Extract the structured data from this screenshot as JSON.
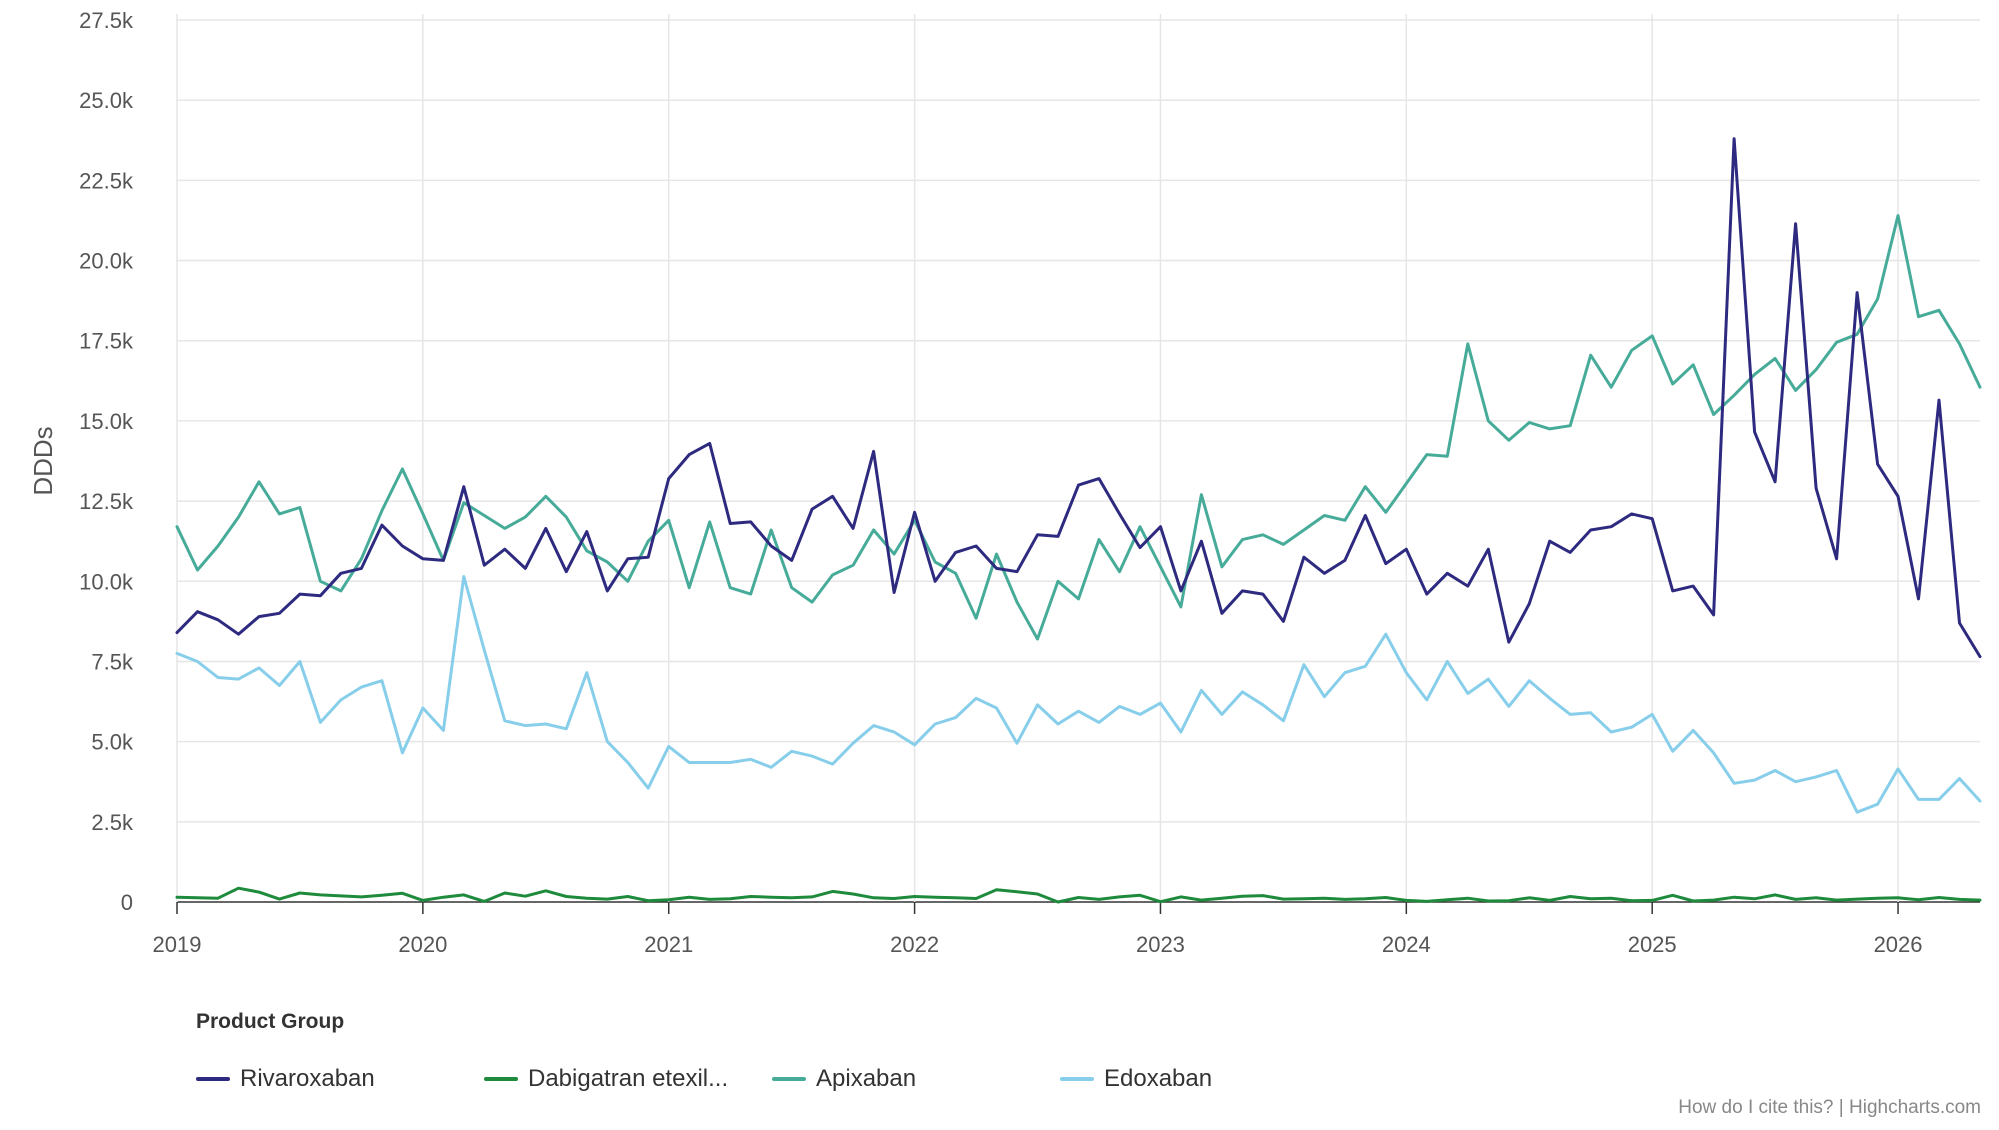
{
  "credits": "How do I cite this? | Highcharts.com",
  "legend_title": "Product Group",
  "chart_data": {
    "type": "line",
    "title": "",
    "ylabel": "DDDs",
    "xlabel": "",
    "ylim": [
      0,
      27500
    ],
    "y_ticks": [
      0,
      2500,
      5000,
      7500,
      10000,
      12500,
      15000,
      17500,
      20000,
      22500,
      25000,
      27500
    ],
    "y_tick_labels": [
      "0",
      "2.5k",
      "5.0k",
      "7.5k",
      "10.0k",
      "12.5k",
      "15.0k",
      "17.5k",
      "20.0k",
      "22.5k",
      "25.0k",
      "27.5k"
    ],
    "x_range": [
      "2019-01",
      "2026-05"
    ],
    "x_tick_labels": [
      "2019",
      "2020",
      "2021",
      "2022",
      "2023",
      "2024",
      "2025",
      "2026"
    ],
    "x_start": "2019-01",
    "x_interval": "month",
    "grid": true,
    "legend_position": "bottom-left",
    "series": [
      {
        "name": "Rivaroxaban",
        "color": "#2e2a80",
        "values": [
          8400,
          9050,
          8800,
          8350,
          8900,
          9000,
          9600,
          9550,
          10250,
          10400,
          11750,
          11100,
          10700,
          10650,
          12950,
          10500,
          11000,
          10400,
          11650,
          10300,
          11550,
          9700,
          10700,
          10750,
          13200,
          13950,
          14300,
          11800,
          11850,
          11100,
          10650,
          12250,
          12650,
          11650,
          14050,
          9650,
          12150,
          10000,
          10900,
          11100,
          10400,
          10300,
          11450,
          11400,
          13000,
          13200,
          12100,
          11050,
          11700,
          9700,
          11250,
          9000,
          9700,
          9600,
          8750,
          10750,
          10250,
          10650,
          12050,
          10550,
          11000,
          9600,
          10250,
          9850,
          11000,
          8100,
          9300,
          11250,
          10900,
          11600,
          11700,
          12100,
          11950,
          9700,
          9850,
          8950,
          23800,
          14650,
          13100,
          21150,
          12900,
          10700,
          19000,
          13650,
          12650,
          9450,
          15650,
          8700,
          7650
        ]
      },
      {
        "name": "Dabigatran etexil...",
        "color": "#1e8a3c",
        "values": [
          150,
          130,
          120,
          430,
          310,
          90,
          280,
          220,
          190,
          160,
          210,
          270,
          50,
          150,
          220,
          20,
          280,
          180,
          350,
          170,
          120,
          90,
          170,
          40,
          70,
          150,
          80,
          100,
          170,
          150,
          130,
          160,
          330,
          250,
          130,
          110,
          170,
          150,
          130,
          110,
          380,
          320,
          250,
          0,
          140,
          80,
          160,
          210,
          10,
          160,
          60,
          120,
          180,
          200,
          90,
          100,
          120,
          80,
          100,
          140,
          50,
          20,
          70,
          120,
          30,
          40,
          130,
          50,
          170,
          100,
          120,
          40,
          50,
          210,
          30,
          60,
          150,
          100,
          220,
          80,
          130,
          60,
          90,
          120,
          130,
          70,
          140,
          80,
          60
        ]
      },
      {
        "name": "Apixaban",
        "color": "#47ab99",
        "values": [
          11700,
          10350,
          11100,
          12000,
          13100,
          12100,
          12300,
          10000,
          9700,
          10700,
          12200,
          13500,
          12100,
          10650,
          12450,
          12050,
          11650,
          12000,
          12650,
          12000,
          10950,
          10600,
          10000,
          11250,
          11900,
          9800,
          11850,
          9800,
          9600,
          11600,
          9800,
          9350,
          10200,
          10500,
          11600,
          10850,
          11900,
          10600,
          10250,
          8850,
          10850,
          9350,
          8200,
          10000,
          9450,
          11300,
          10300,
          11700,
          10450,
          9200,
          12700,
          10450,
          11300,
          11450,
          11150,
          11600,
          12050,
          11900,
          12950,
          12150,
          13050,
          13950,
          13900,
          17400,
          15000,
          14400,
          14950,
          14750,
          14850,
          17050,
          16050,
          17200,
          17650,
          16150,
          16750,
          15200,
          15800,
          16450,
          16950,
          15950,
          16600,
          17450,
          17700,
          18800,
          21400,
          18250,
          18450,
          17400,
          16050
        ]
      },
      {
        "name": "Edoxaban",
        "color": "#87ceeb",
        "values": [
          7750,
          7500,
          7000,
          6950,
          7300,
          6750,
          7500,
          5600,
          6300,
          6700,
          6900,
          4650,
          6050,
          5350,
          10150,
          7850,
          5650,
          5500,
          5550,
          5400,
          7150,
          5000,
          4350,
          3550,
          4850,
          4350,
          4350,
          4350,
          4450,
          4200,
          4700,
          4550,
          4300,
          4950,
          5500,
          5300,
          4900,
          5550,
          5750,
          6350,
          6050,
          4950,
          6150,
          5550,
          5950,
          5600,
          6100,
          5850,
          6200,
          5300,
          6600,
          5850,
          6550,
          6150,
          5650,
          7400,
          6400,
          7150,
          7350,
          8350,
          7150,
          6300,
          7500,
          6500,
          6950,
          6100,
          6900,
          6350,
          5850,
          5900,
          5300,
          5450,
          5850,
          4700,
          5350,
          4650,
          3700,
          3800,
          4100,
          3750,
          3900,
          4100,
          2800,
          3050,
          4150,
          3200,
          3200,
          3850,
          3150
        ]
      }
    ]
  }
}
